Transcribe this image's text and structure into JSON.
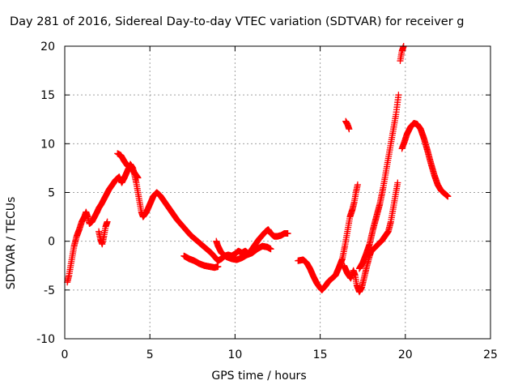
{
  "chart_data": {
    "type": "scatter",
    "title": "Day 281 of 2016, Sidereal Day-to-day VTEC variation (SDTVAR) for receiver g",
    "xlabel": "GPS time / hours",
    "ylabel": "SDTVAR / TECUs",
    "xlim": [
      0,
      25
    ],
    "ylim": [
      -10,
      20
    ],
    "xticks": [
      0,
      5,
      10,
      15,
      20,
      25
    ],
    "yticks": [
      -10,
      -5,
      0,
      5,
      10,
      15,
      20
    ],
    "grid": true,
    "marker": "+",
    "color": "#ff0000",
    "segments": [
      [
        [
          0.15,
          -4.2
        ],
        [
          0.25,
          -3.5
        ],
        [
          0.35,
          -2.5
        ],
        [
          0.45,
          -1.5
        ],
        [
          0.55,
          -0.5
        ],
        [
          0.7,
          0.5
        ],
        [
          0.85,
          1.2
        ],
        [
          1.0,
          2.0
        ],
        [
          1.15,
          2.5
        ],
        [
          1.25,
          3.0
        ],
        [
          1.35,
          2.5
        ],
        [
          1.45,
          1.8
        ],
        [
          1.6,
          2.0
        ],
        [
          1.75,
          2.5
        ],
        [
          1.9,
          3.0
        ],
        [
          2.0,
          3.4
        ],
        [
          2.15,
          3.8
        ],
        [
          2.3,
          4.3
        ],
        [
          2.45,
          4.8
        ],
        [
          2.6,
          5.3
        ],
        [
          2.8,
          5.8
        ],
        [
          3.0,
          6.3
        ],
        [
          3.2,
          6.6
        ],
        [
          3.35,
          6.0
        ],
        [
          3.5,
          6.5
        ],
        [
          3.7,
          7.3
        ],
        [
          3.85,
          7.9
        ],
        [
          4.0,
          7.5
        ],
        [
          4.1,
          6.8
        ],
        [
          4.2,
          6.0
        ],
        [
          4.3,
          5.0
        ],
        [
          4.4,
          4.0
        ],
        [
          4.5,
          3.0
        ],
        [
          4.6,
          2.5
        ],
        [
          4.8,
          3.0
        ],
        [
          5.0,
          3.8
        ],
        [
          5.2,
          4.6
        ],
        [
          5.4,
          5.0
        ],
        [
          5.6,
          4.7
        ],
        [
          5.8,
          4.2
        ],
        [
          6.0,
          3.7
        ],
        [
          6.2,
          3.2
        ],
        [
          6.4,
          2.7
        ],
        [
          6.6,
          2.2
        ],
        [
          6.8,
          1.8
        ],
        [
          7.0,
          1.4
        ],
        [
          7.2,
          1.0
        ],
        [
          7.4,
          0.6
        ],
        [
          7.6,
          0.3
        ],
        [
          7.8,
          0.0
        ],
        [
          8.0,
          -0.3
        ],
        [
          8.2,
          -0.6
        ],
        [
          8.4,
          -0.9
        ],
        [
          8.6,
          -1.2
        ],
        [
          8.8,
          -1.6
        ],
        [
          9.0,
          -2.0
        ],
        [
          9.2,
          -1.8
        ],
        [
          9.4,
          -1.5
        ],
        [
          9.6,
          -1.4
        ],
        [
          9.8,
          -1.5
        ],
        [
          10.0,
          -1.3
        ],
        [
          10.2,
          -1.0
        ],
        [
          10.4,
          -1.2
        ],
        [
          10.6,
          -1.0
        ],
        [
          10.8,
          -1.3
        ],
        [
          11.0,
          -0.8
        ],
        [
          11.2,
          -0.3
        ],
        [
          11.4,
          0.2
        ],
        [
          11.6,
          0.6
        ],
        [
          11.8,
          1.0
        ],
        [
          11.95,
          1.2
        ],
        [
          12.1,
          0.8
        ],
        [
          12.3,
          0.5
        ],
        [
          12.5,
          0.5
        ],
        [
          12.7,
          0.6
        ],
        [
          12.9,
          0.8
        ],
        [
          13.1,
          0.8
        ]
      ],
      [
        [
          2.0,
          1.0
        ],
        [
          2.1,
          0.2
        ],
        [
          2.2,
          -0.3
        ],
        [
          2.3,
          0.5
        ],
        [
          2.4,
          1.5
        ],
        [
          2.5,
          2.0
        ]
      ],
      [
        [
          3.1,
          9.0
        ],
        [
          3.3,
          8.8
        ],
        [
          3.5,
          8.2
        ],
        [
          3.7,
          7.7
        ],
        [
          3.9,
          7.6
        ],
        [
          4.1,
          7.0
        ],
        [
          4.3,
          6.5
        ]
      ],
      [
        [
          7.0,
          -1.5
        ],
        [
          7.3,
          -1.8
        ],
        [
          7.6,
          -2.0
        ],
        [
          7.9,
          -2.3
        ],
        [
          8.2,
          -2.5
        ],
        [
          8.5,
          -2.6
        ],
        [
          8.8,
          -2.7
        ],
        [
          9.0,
          -2.6
        ]
      ],
      [
        [
          8.9,
          0.0
        ],
        [
          9.0,
          -0.5
        ],
        [
          9.2,
          -1.2
        ],
        [
          9.5,
          -1.6
        ],
        [
          9.8,
          -1.8
        ],
        [
          10.1,
          -1.9
        ],
        [
          10.4,
          -1.7
        ],
        [
          10.7,
          -1.4
        ],
        [
          11.0,
          -1.2
        ],
        [
          11.3,
          -0.8
        ],
        [
          11.6,
          -0.5
        ],
        [
          11.9,
          -0.6
        ],
        [
          12.1,
          -0.8
        ]
      ],
      [
        [
          13.7,
          -2.0
        ],
        [
          14.0,
          -1.9
        ],
        [
          14.2,
          -2.2
        ],
        [
          14.4,
          -2.8
        ],
        [
          14.6,
          -3.6
        ],
        [
          14.8,
          -4.3
        ],
        [
          15.0,
          -4.8
        ],
        [
          15.1,
          -5.0
        ],
        [
          15.3,
          -4.6
        ],
        [
          15.5,
          -4.1
        ],
        [
          15.7,
          -3.8
        ],
        [
          15.9,
          -3.5
        ],
        [
          16.1,
          -2.7
        ],
        [
          16.3,
          -1.8
        ],
        [
          16.45,
          -0.5
        ],
        [
          16.6,
          1.0
        ],
        [
          16.75,
          2.5
        ],
        [
          16.9,
          3.3
        ],
        [
          17.0,
          4.0
        ],
        [
          17.1,
          5.0
        ],
        [
          17.2,
          5.8
        ]
      ],
      [
        [
          16.4,
          -2.5
        ],
        [
          16.6,
          -3.3
        ],
        [
          16.8,
          -3.8
        ],
        [
          16.95,
          -3.0
        ],
        [
          17.05,
          -3.5
        ],
        [
          17.15,
          -4.5
        ],
        [
          17.3,
          -5.2
        ],
        [
          17.45,
          -4.7
        ],
        [
          17.6,
          -3.6
        ],
        [
          17.75,
          -2.5
        ],
        [
          17.9,
          -1.5
        ],
        [
          18.0,
          -1.0
        ],
        [
          18.2,
          -0.7
        ],
        [
          18.4,
          -0.3
        ],
        [
          18.6,
          0.0
        ],
        [
          18.8,
          0.5
        ],
        [
          19.0,
          1.0
        ],
        [
          19.15,
          2.0
        ],
        [
          19.3,
          3.5
        ],
        [
          19.45,
          5.0
        ],
        [
          19.55,
          6.0
        ]
      ],
      [
        [
          16.5,
          12.3
        ],
        [
          16.6,
          12.0
        ],
        [
          16.7,
          11.5
        ]
      ],
      [
        [
          17.3,
          -2.8
        ],
        [
          17.5,
          -2.2
        ],
        [
          17.7,
          -1.3
        ],
        [
          17.9,
          -0.3
        ],
        [
          18.1,
          1.2
        ],
        [
          18.3,
          2.5
        ],
        [
          18.5,
          3.8
        ],
        [
          18.7,
          5.5
        ],
        [
          18.85,
          7.0
        ],
        [
          19.0,
          8.5
        ],
        [
          19.15,
          10.0
        ],
        [
          19.3,
          11.5
        ],
        [
          19.45,
          13.0
        ],
        [
          19.6,
          15.0
        ]
      ],
      [
        [
          19.7,
          18.5
        ],
        [
          19.8,
          19.5
        ],
        [
          19.9,
          20.0
        ]
      ],
      [
        [
          19.8,
          9.5
        ],
        [
          19.95,
          10.2
        ],
        [
          20.1,
          11.0
        ],
        [
          20.3,
          11.7
        ],
        [
          20.5,
          12.1
        ],
        [
          20.7,
          12.0
        ],
        [
          20.9,
          11.5
        ],
        [
          21.1,
          10.5
        ],
        [
          21.3,
          9.3
        ],
        [
          21.5,
          8.0
        ],
        [
          21.7,
          6.8
        ],
        [
          21.9,
          5.8
        ],
        [
          22.1,
          5.2
        ],
        [
          22.3,
          4.9
        ],
        [
          22.5,
          4.6
        ]
      ]
    ]
  }
}
